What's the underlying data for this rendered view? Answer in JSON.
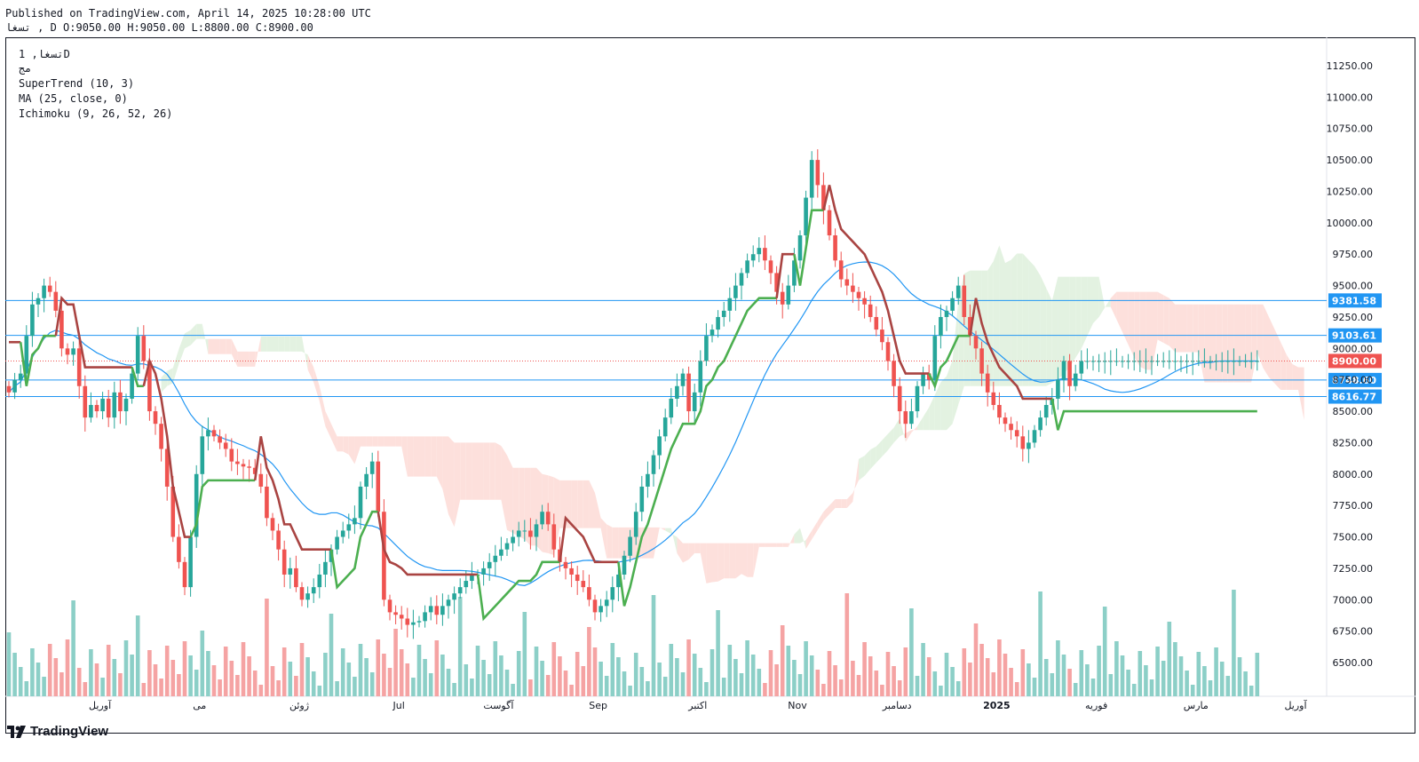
{
  "header": {
    "published": "Published on TradingView.com, April 14, 2025 10:28:00 UTC",
    "ohlc": "تسغا , D O:9050.00 H:9050.00 L:8800.00 C:8900.00"
  },
  "legend": {
    "symbol": "تسغا, 1D",
    "line2": "مج",
    "supertrend": "SuperTrend (10, 3)",
    "ma": "MA (25, close, 0)",
    "ichimoku": "Ichimoku (9, 26, 52, 26)"
  },
  "brand": {
    "logo_text": "TradingView"
  },
  "colors": {
    "up": "#26a69a",
    "down": "#ef5350",
    "vol_up": "#8ccfc7",
    "vol_down": "#f5a3a3",
    "supertrend_up": "#4caf50",
    "supertrend_down": "#a94442",
    "ma": "#2196f3",
    "cloud_bull": "#e3f2e1",
    "cloud_bear": "#fde0dc",
    "hline": "#2196f3",
    "last_price": "#ef5350"
  },
  "chart_data": {
    "type": "candlestick",
    "y_axis": {
      "min": 6300,
      "max": 11500,
      "ticks": [
        6500,
        6750,
        7000,
        7250,
        7500,
        7750,
        8000,
        8250,
        8500,
        8750,
        9000,
        9250,
        9500,
        9750,
        10000,
        10250,
        10500,
        10750,
        11000,
        11250
      ],
      "tick_labels": [
        "6500.00",
        "6750.00",
        "7000.00",
        "7250.00",
        "7500.00",
        "7750.00",
        "8000.00",
        "8250.00",
        "8500.00",
        "8750.00",
        "9000.00",
        "9250.00",
        "9500.00",
        "9750.00",
        "10000.00",
        "10250.00",
        "10500.00",
        "10750.00",
        "11000.00",
        "11250.00"
      ]
    },
    "x_axis": {
      "labels": [
        "آوریل",
        "می",
        "ژوئن",
        "Jul",
        "آگوست",
        "Sep",
        "اکتبر",
        "Nov",
        "دسامبر",
        "2025",
        "فوریه",
        "مارس",
        "آوریل"
      ],
      "label_bar_index": [
        11,
        28,
        45,
        62,
        79,
        96,
        113,
        130,
        147,
        164,
        181,
        198,
        215
      ]
    },
    "horizontal_lines": [
      {
        "value": 9381.58,
        "label": "9381.58"
      },
      {
        "value": 9103.61,
        "label": "9103.61"
      },
      {
        "value": 8748.6,
        "label": "8748.60"
      },
      {
        "value": 8616.77,
        "label": "8616.77"
      }
    ],
    "last_price": {
      "value": 8900.0,
      "label": "8900.00"
    },
    "close": [
      8650,
      8750,
      8800,
      9100,
      9350,
      9400,
      9500,
      9450,
      9300,
      9000,
      8950,
      9000,
      8700,
      8450,
      8550,
      8500,
      8600,
      8450,
      8650,
      8500,
      8600,
      8800,
      9100,
      8900,
      8500,
      8400,
      8200,
      7900,
      7500,
      7300,
      7100,
      7500,
      8000,
      8300,
      8350,
      8300,
      8250,
      8200,
      8100,
      8080,
      8060,
      8050,
      8000,
      7900,
      7650,
      7550,
      7400,
      7200,
      7250,
      7100,
      7000,
      7050,
      7100,
      7200,
      7300,
      7400,
      7500,
      7550,
      7600,
      7650,
      7900,
      8000,
      8100,
      7700,
      7000,
      6900,
      6880,
      6850,
      6800,
      6820,
      6830,
      6900,
      6950,
      6880,
      6950,
      7000,
      7050,
      7100,
      7150,
      7200,
      7200,
      7250,
      7300,
      7350,
      7400,
      7450,
      7500,
      7550,
      7550,
      7500,
      7600,
      7700,
      7600,
      7400,
      7300,
      7250,
      7200,
      7150,
      7100,
      7000,
      6900,
      6950,
      7000,
      7100,
      7200,
      7350,
      7500,
      7700,
      7900,
      8000,
      8150,
      8300,
      8450,
      8600,
      8700,
      8800,
      8500,
      8650,
      8900,
      9100,
      9150,
      9250,
      9300,
      9400,
      9500,
      9600,
      9700,
      9750,
      9800,
      9700,
      9600,
      9450,
      9350,
      9500,
      9700,
      9900,
      10200,
      10500,
      10300,
      10100,
      9900,
      9700,
      9550,
      9500,
      9450,
      9400,
      9350,
      9250,
      9150,
      9050,
      8900,
      8700,
      8500,
      8400,
      8500,
      8700,
      8800,
      8750,
      9100,
      9250,
      9300,
      9400,
      9500,
      9250,
      9100,
      9000,
      8800,
      8650,
      8550,
      8450,
      8400,
      8350,
      8300,
      8200,
      8250,
      8350,
      8450,
      8550,
      8600,
      8750,
      8900,
      8700,
      8800,
      8900,
      8900,
      8900,
      8900,
      8900,
      8900,
      8900,
      8900,
      8900,
      8900,
      8900,
      8900,
      8900,
      8900,
      8900,
      8900,
      8900,
      8900,
      8900,
      8900,
      8900,
      8900,
      8900,
      8900,
      8900,
      8900,
      8900,
      8900,
      8900,
      8900,
      8900
    ]
  }
}
